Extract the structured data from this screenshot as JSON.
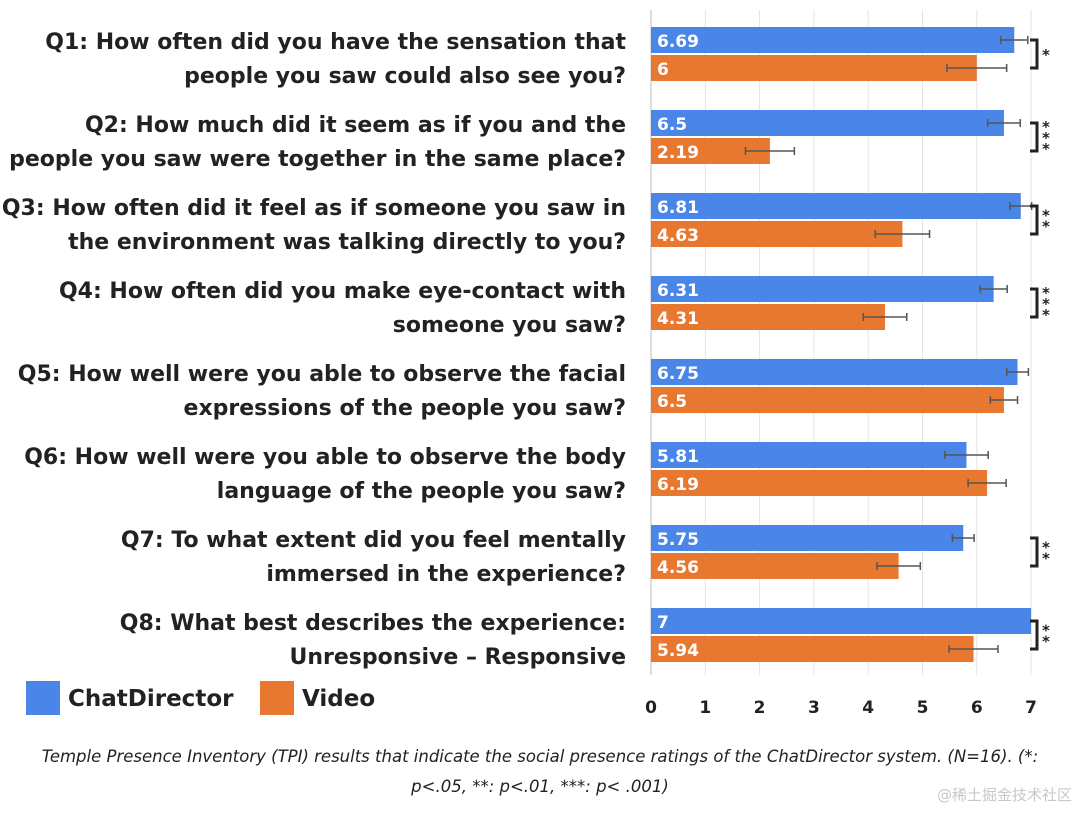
{
  "chart_data": {
    "type": "bar",
    "orientation": "horizontal",
    "categories": [
      [
        "Q1: How often did you have the sensation that",
        "people you saw could also see you?"
      ],
      [
        "Q2: How much did it seem as if you and the",
        "people you saw were together in the same place?"
      ],
      [
        "Q3: How often did it feel as if someone you saw in",
        "the environment was talking directly to you?"
      ],
      [
        "Q4: How often did you make eye-contact with",
        "someone you saw?"
      ],
      [
        "Q5: How well were you able to observe the facial",
        "expressions of the people you saw?"
      ],
      [
        "Q6: How well were you able to observe the body",
        "language of the people you saw?"
      ],
      [
        "Q7: To what extent did you feel mentally",
        "immersed in the experience?"
      ],
      [
        "Q8: What best describes the experience:",
        "Unresponsive – Responsive"
      ]
    ],
    "series": [
      {
        "name": "ChatDirector",
        "color": "#4a86e8",
        "values": [
          6.69,
          6.5,
          6.81,
          6.31,
          6.75,
          5.81,
          5.75,
          7
        ],
        "value_labels": [
          "6.69",
          "6.5",
          "6.81",
          "6.31",
          "6.75",
          "5.81",
          "5.75",
          "7"
        ],
        "error": [
          0.25,
          0.3,
          0.2,
          0.25,
          0.2,
          0.4,
          0.2,
          0
        ]
      },
      {
        "name": "Video",
        "color": "#e8782f",
        "values": [
          6,
          2.19,
          4.63,
          4.31,
          6.5,
          6.19,
          4.56,
          5.94
        ],
        "value_labels": [
          "6",
          "2.19",
          "4.63",
          "4.31",
          "6.5",
          "6.19",
          "4.56",
          "5.94"
        ],
        "error": [
          0.55,
          0.45,
          0.5,
          0.4,
          0.25,
          0.35,
          0.4,
          0.45
        ]
      }
    ],
    "significance": [
      "*",
      "***",
      "**",
      "***",
      "",
      "",
      "**",
      "**"
    ],
    "xlim": [
      0,
      7
    ],
    "xticks": [
      "0",
      "1",
      "2",
      "3",
      "4",
      "5",
      "6",
      "7"
    ],
    "grid": true,
    "legend": "bottom-left"
  },
  "caption": {
    "line1": "Temple Presence Inventory (TPI) results that indicate the social presence ratings of the ChatDirector system. (N=16). (*:",
    "line2": "p<.05, **: p<.01, ***: p< .001)"
  },
  "watermark": "@稀土掘金技术社区"
}
